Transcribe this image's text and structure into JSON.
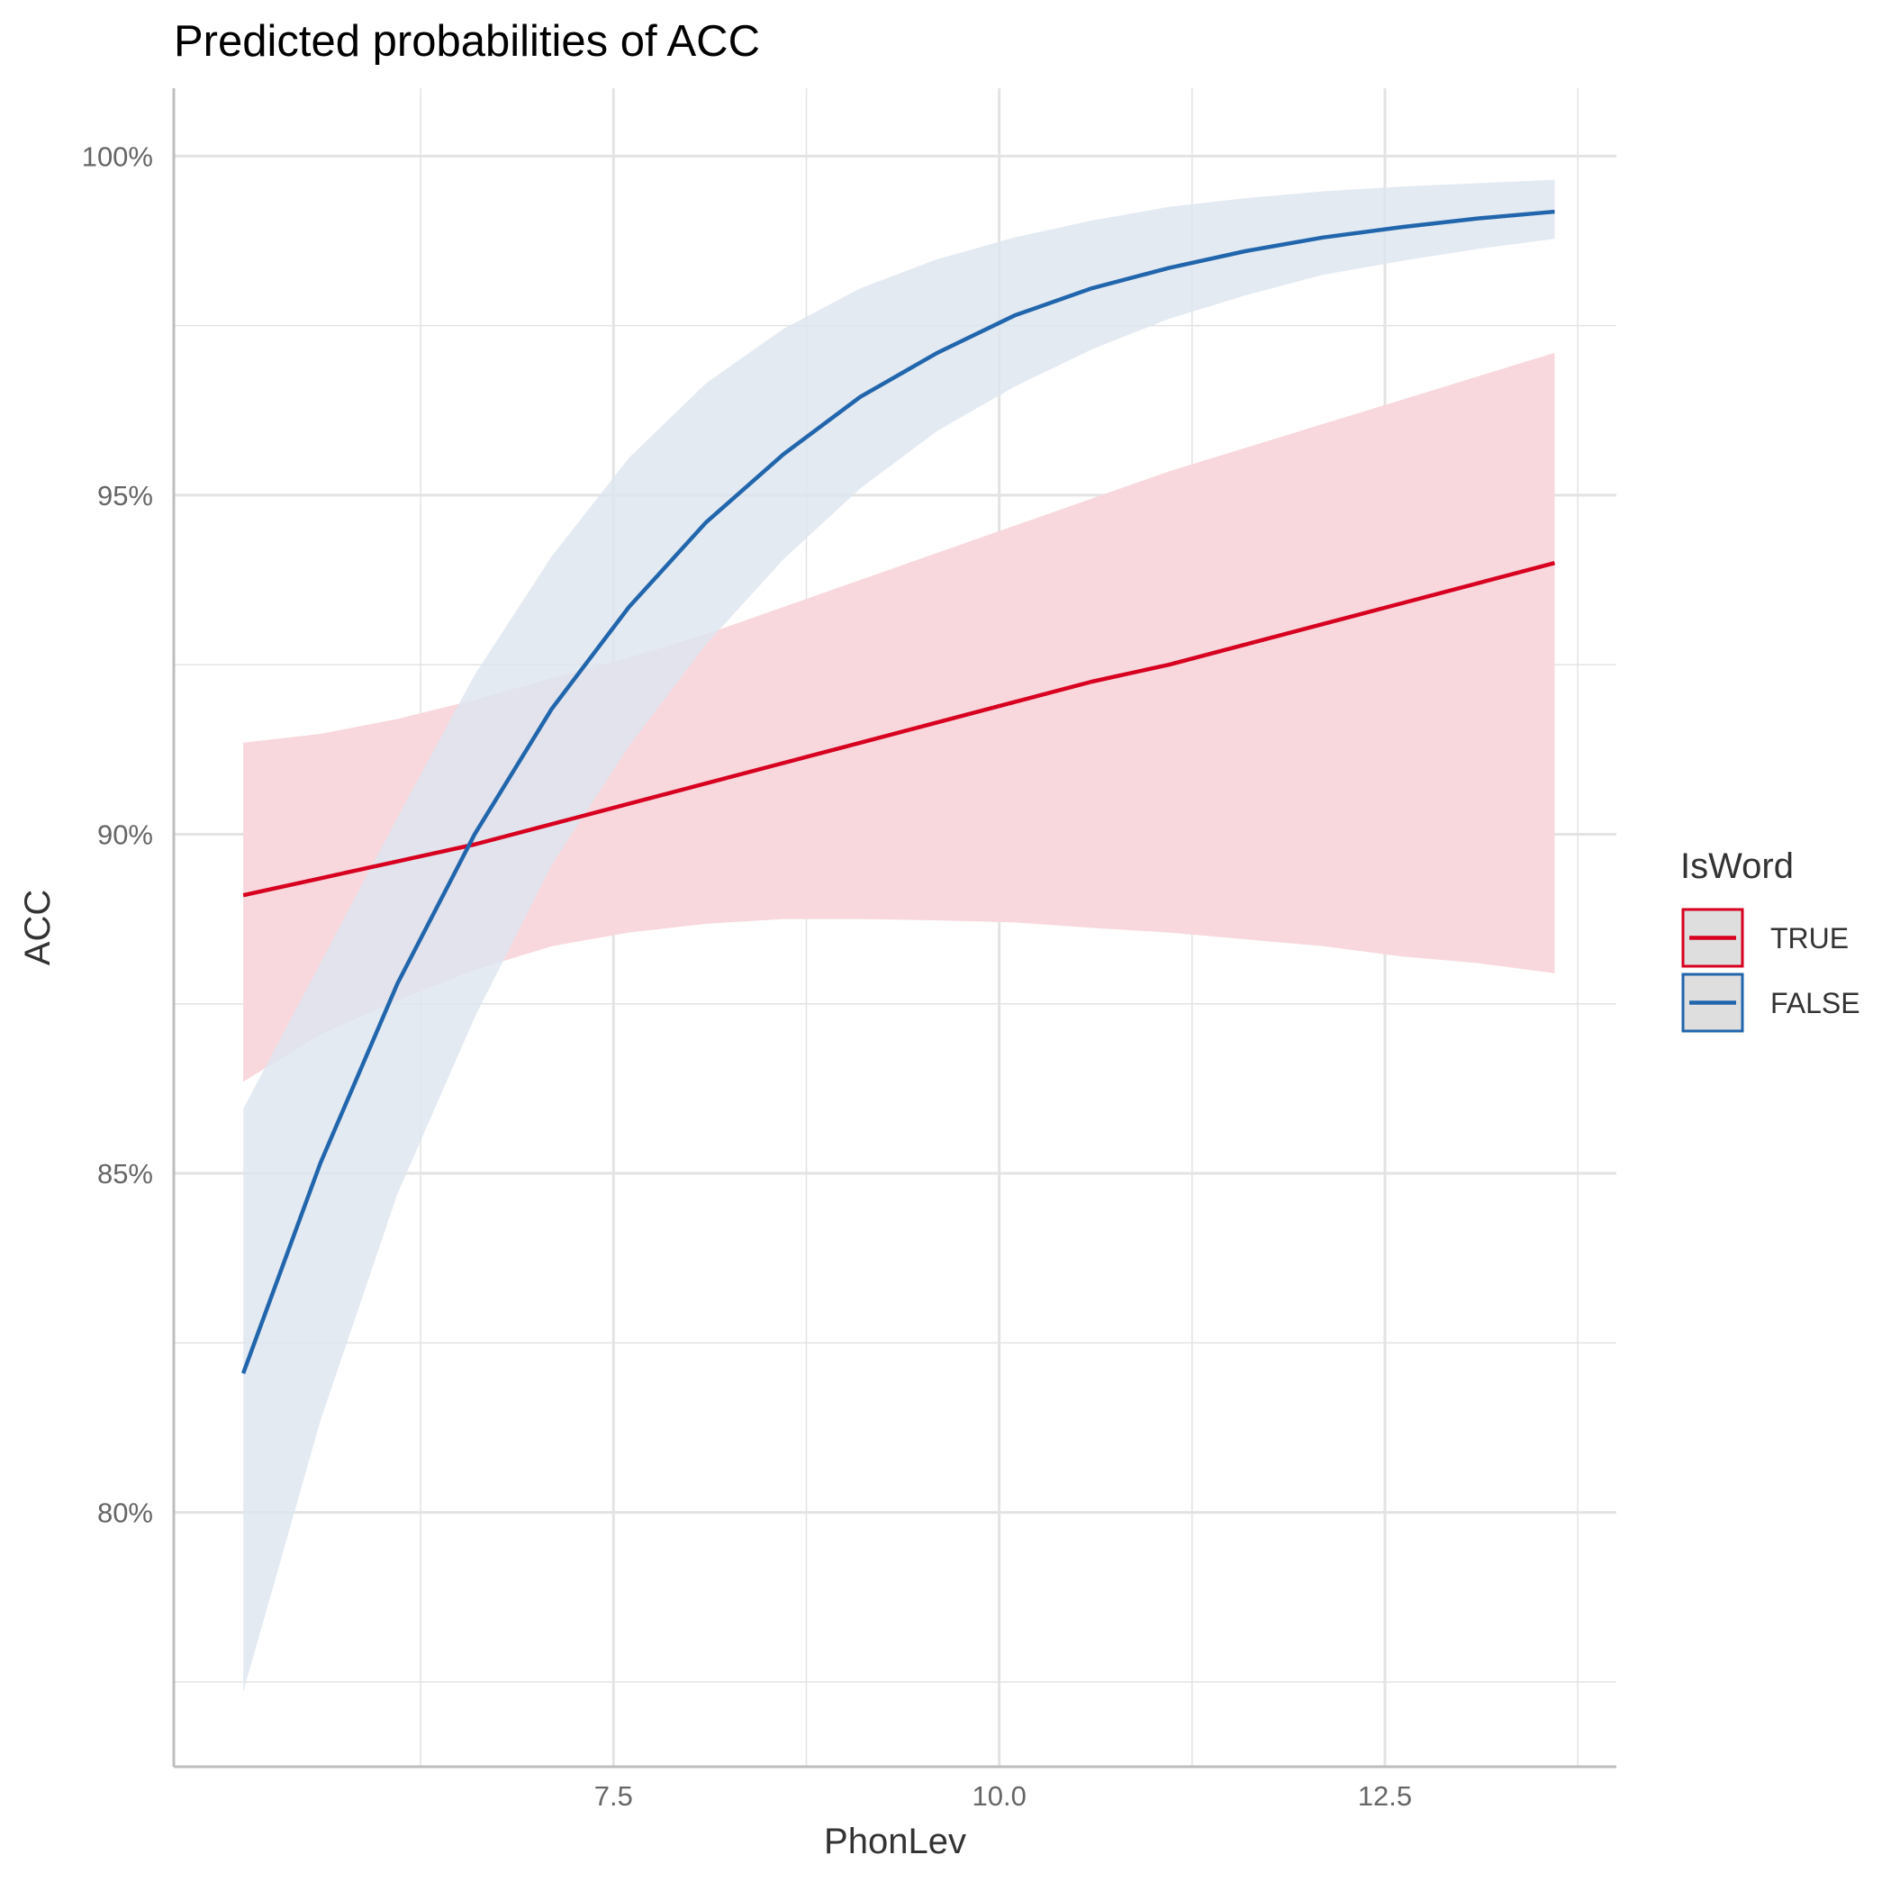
{
  "chart_data": {
    "type": "line",
    "title": "Predicted probabilities of ACC",
    "xlabel": "PhonLev",
    "ylabel": "ACC",
    "xlim": [
      4.65,
      14.0
    ],
    "ylim": [
      0.7625,
      1.01
    ],
    "x_ticks": [
      7.5,
      10.0,
      12.5
    ],
    "x_tick_labels": [
      "7.5",
      "10.0",
      "12.5"
    ],
    "y_ticks": [
      0.8,
      0.85,
      0.9,
      0.95,
      1.0
    ],
    "y_tick_labels": [
      "80%",
      "85%",
      "90%",
      "95%",
      "100%"
    ],
    "grid": true,
    "legend": {
      "title": "IsWord",
      "position": "right"
    },
    "series": [
      {
        "name": "TRUE",
        "color": "#D7001F",
        "ribbon_color": "#F8D8DC",
        "x": [
          5.1,
          5.6,
          6.1,
          6.6,
          7.1,
          7.6,
          8.1,
          8.6,
          9.1,
          9.6,
          10.1,
          10.6,
          11.1,
          11.6,
          12.1,
          12.6,
          13.1,
          13.6
        ],
        "y": [
          0.891,
          0.8935,
          0.896,
          0.8985,
          0.9015,
          0.9045,
          0.9075,
          0.9105,
          0.9135,
          0.9165,
          0.9195,
          0.9225,
          0.925,
          0.928,
          0.931,
          0.934,
          0.937,
          0.94
        ],
        "lower": [
          0.8635,
          0.8705,
          0.8755,
          0.88,
          0.8835,
          0.8855,
          0.8868,
          0.8875,
          0.8875,
          0.8873,
          0.887,
          0.8862,
          0.8855,
          0.8845,
          0.8835,
          0.882,
          0.881,
          0.8795
        ],
        "upper": [
          0.9135,
          0.9148,
          0.917,
          0.9198,
          0.923,
          0.926,
          0.9295,
          0.9335,
          0.9375,
          0.9415,
          0.9455,
          0.9495,
          0.9535,
          0.957,
          0.9605,
          0.964,
          0.9675,
          0.971
        ]
      },
      {
        "name": "FALSE",
        "color": "#2166AC",
        "ribbon_color": "#DDE5EF",
        "x": [
          5.1,
          5.6,
          6.1,
          6.6,
          7.1,
          7.6,
          8.1,
          8.6,
          9.1,
          9.6,
          10.1,
          10.6,
          11.1,
          11.6,
          12.1,
          12.6,
          13.1,
          13.6
        ],
        "y": [
          0.8205,
          0.8515,
          0.878,
          0.9,
          0.9185,
          0.9335,
          0.946,
          0.956,
          0.9645,
          0.971,
          0.9765,
          0.9805,
          0.9835,
          0.986,
          0.988,
          0.9895,
          0.9908,
          0.9918
        ],
        "lower": [
          0.7735,
          0.8135,
          0.847,
          0.873,
          0.8955,
          0.913,
          0.928,
          0.9405,
          0.951,
          0.9595,
          0.966,
          0.9715,
          0.976,
          0.9795,
          0.9825,
          0.9845,
          0.9863,
          0.9878
        ],
        "upper": [
          0.8595,
          0.881,
          0.9025,
          0.9235,
          0.941,
          0.9555,
          0.9665,
          0.9745,
          0.9805,
          0.9848,
          0.988,
          0.9905,
          0.9925,
          0.9938,
          0.9948,
          0.9955,
          0.996,
          0.9965
        ]
      }
    ]
  }
}
